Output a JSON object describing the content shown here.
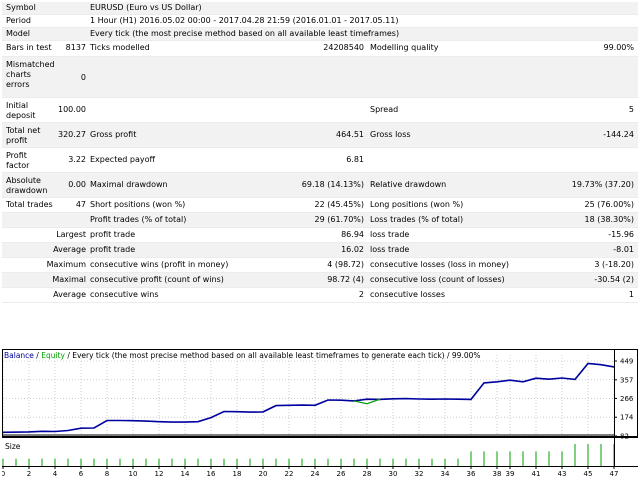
{
  "report": {
    "symbol_label": "Symbol",
    "symbol_value": "EURUSD (Euro vs US Dollar)",
    "period_label": "Period",
    "period_value": "1 Hour (H1) 2016.05.02 00:00 - 2017.04.28 21:59 (2016.01.01 - 2017.05.11)",
    "model_label": "Model",
    "model_value": "Every tick (the most precise method based on all available least timeframes)",
    "bars_label": "Bars in test",
    "bars_value": "8137",
    "ticks_label": "Ticks modelled",
    "ticks_value": "24208540",
    "quality_label": "Modelling quality",
    "quality_value": "99.00%",
    "mismatched_label": "Mismatched charts errors",
    "mismatched_value": "0",
    "deposit_label": "Initial deposit",
    "deposit_value": "100.00",
    "spread_label": "Spread",
    "spread_value": "5",
    "net_profit_label": "Total net profit",
    "net_profit_value": "320.27",
    "gross_profit_label": "Gross profit",
    "gross_profit_value": "464.51",
    "gross_loss_label": "Gross loss",
    "gross_loss_value": "-144.24",
    "profit_factor_label": "Profit factor",
    "profit_factor_value": "3.22",
    "expected_payoff_label": "Expected payoff",
    "expected_payoff_value": "6.81",
    "abs_dd_label": "Absolute drawdown",
    "abs_dd_value": "0.00",
    "max_dd_label": "Maximal drawdown",
    "max_dd_value": "69.18 (14.13%)",
    "rel_dd_label": "Relative drawdown",
    "rel_dd_value": "19.73% (37.20)",
    "total_trades_label": "Total trades",
    "total_trades_value": "47",
    "short_label": "Short positions (won %)",
    "short_value": "22 (45.45%)",
    "long_label": "Long positions (won %)",
    "long_value": "25 (76.00%)",
    "profit_trades_label": "Profit trades (% of total)",
    "profit_trades_value": "29 (61.70%)",
    "loss_trades_label": "Loss trades (% of total)",
    "loss_trades_value": "18 (38.30%)",
    "largest_label": "Largest",
    "largest_profit_label": "profit trade",
    "largest_profit_value": "86.94",
    "largest_loss_label": "loss trade",
    "largest_loss_value": "-15.96",
    "average_label": "Average",
    "average_profit_label": "profit trade",
    "average_profit_value": "16.02",
    "average_loss_label": "loss trade",
    "average_loss_value": "-8.01",
    "maximum_label": "Maximum",
    "max_wins_label": "consecutive wins (profit in money)",
    "max_wins_value": "4 (98.72)",
    "max_losses_label": "consecutive losses (loss in money)",
    "max_losses_value": "3 (-18.20)",
    "maximal_label": "Maximal",
    "maximal_profit_label": "consecutive profit (count of wins)",
    "maximal_profit_value": "98.72 (4)",
    "maximal_loss_label": "consecutive loss (count of losses)",
    "maximal_loss_value": "-30.54 (2)",
    "avg_label": "Average",
    "avg_wins_label": "consecutive wins",
    "avg_wins_value": "2",
    "avg_losses_label": "consecutive losses",
    "avg_losses_value": "1"
  },
  "chart_data": {
    "type": "line",
    "legend": {
      "balance": "Balance",
      "sep": " / ",
      "equity": "Equity",
      "desc": " / Every tick (the most precise method based on all available least timeframes to generate each tick) / 99.00%"
    },
    "series": [
      {
        "name": "Balance",
        "color": "#0000a0",
        "x": [
          0,
          2,
          3,
          4,
          5,
          6,
          7,
          8,
          9,
          10,
          11,
          12,
          13,
          14,
          15,
          16,
          17,
          18,
          19,
          20,
          21,
          22,
          23,
          24,
          25,
          26,
          27,
          28,
          29,
          30,
          31,
          32,
          33,
          34,
          35,
          36,
          37,
          38,
          39,
          40,
          41,
          42,
          43,
          44,
          45,
          46,
          47
        ],
        "y": [
          100,
          102,
          105,
          104,
          109,
          120,
          121,
          158,
          158,
          157,
          155,
          152,
          150,
          150,
          152,
          172,
          202,
          201,
          199,
          200,
          231,
          232,
          233,
          232,
          258,
          257,
          254,
          262,
          261,
          264,
          265,
          263,
          262,
          263,
          262,
          261,
          342,
          347,
          355,
          347,
          365,
          360,
          366,
          359,
          437,
          431,
          420
        ]
      },
      {
        "name": "Equity",
        "color": "#00a000",
        "x": [
          27,
          28,
          29
        ],
        "y": [
          254,
          240,
          262
        ]
      }
    ],
    "y_ticks": [
      "449",
      "357",
      "266",
      "174",
      "82"
    ],
    "x_ticks": [
      "0",
      "2",
      "4",
      "6",
      "8",
      "10",
      "12",
      "14",
      "16",
      "18",
      "20",
      "22",
      "24",
      "26",
      "28",
      "30",
      "32",
      "34",
      "36",
      "38",
      "39",
      "41",
      "43",
      "45",
      "47"
    ],
    "ylim": [
      82,
      449
    ],
    "xlim": [
      0,
      47
    ],
    "size_label": "Size",
    "size_values": [
      1,
      1,
      1,
      1,
      1,
      1,
      1,
      1,
      1,
      1,
      1,
      1,
      1,
      1,
      1,
      1,
      1,
      1,
      1,
      1,
      1,
      1,
      1,
      1,
      1,
      1,
      1,
      1,
      1,
      1,
      1,
      1,
      1,
      1,
      1,
      1,
      2,
      2,
      2,
      2,
      2,
      2,
      2,
      2,
      3,
      3,
      3,
      3
    ]
  }
}
